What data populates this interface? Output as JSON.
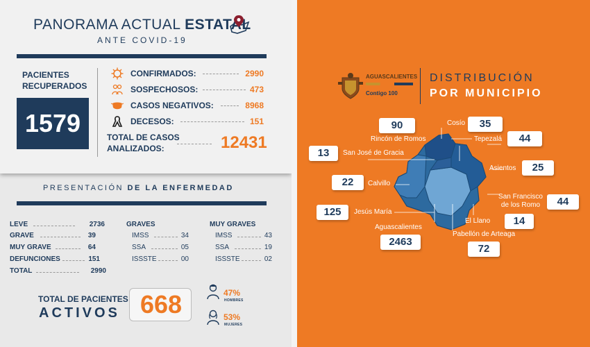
{
  "header": {
    "title_prefix": "PANORAMA ACTUAL",
    "title_bold": "ESTATAL",
    "subtitle": "ANTE COVID-19"
  },
  "recuperados": {
    "label": "PACIENTES RECUPERADOS",
    "value": "1579"
  },
  "stats": [
    {
      "label": "CONFIRMADOS:",
      "value": "2990",
      "icon": "virus-icon"
    },
    {
      "label": "SOSPECHOSOS:",
      "value": "473",
      "icon": "people-icon"
    },
    {
      "label": "CASOS NEGATIVOS:",
      "value": "8968",
      "icon": "mask-icon"
    },
    {
      "label": "DECESOS:",
      "value": "151",
      "icon": "ribbon-icon"
    }
  ],
  "total_casos": {
    "label": "TOTAL DE CASOS ANALIZADOS:",
    "value": "12431"
  },
  "presentacion": {
    "title_prefix": "PRESENTACIÓN",
    "title_bold": "DE LA ENFERMEDAD",
    "col1": [
      {
        "label": "LEVE",
        "value": "2736"
      },
      {
        "label": "GRAVE",
        "value": "39"
      },
      {
        "label": "MUY GRAVE",
        "value": "64"
      },
      {
        "label": "DEFUNCIONES",
        "value": "151"
      },
      {
        "label": "TOTAL",
        "value": "2990"
      }
    ],
    "col2_header": "GRAVES",
    "col2": [
      {
        "label": "IMSS",
        "value": "34"
      },
      {
        "label": "SSA",
        "value": "05"
      },
      {
        "label": "ISSSTE",
        "value": "00"
      }
    ],
    "col3_header": "MUY GRAVES",
    "col3": [
      {
        "label": "IMSS",
        "value": "43"
      },
      {
        "label": "SSA",
        "value": "19"
      },
      {
        "label": "ISSSTE",
        "value": "02"
      }
    ]
  },
  "activos": {
    "label_top": "TOTAL DE PACIENTES",
    "label_bottom": "ACTIVOS",
    "value": "668"
  },
  "gender": {
    "men_pct": "47%",
    "men_label": "HOMBRES",
    "women_pct": "53%",
    "women_label": "MUJERES"
  },
  "distribution": {
    "logo_text": "AGUASCALIENTES",
    "logo_slogan": "Contigo 100",
    "title_line1": "DISTRIBUCIÓN",
    "title_line2": "POR MUNICIPIO",
    "municipalities": [
      {
        "name": "Rincón de Romos",
        "value": "90"
      },
      {
        "name": "Cosío",
        "value": "35"
      },
      {
        "name": "Tepezalá",
        "value": "44"
      },
      {
        "name": "San José de Gracia",
        "value": "13"
      },
      {
        "name": "Asientos",
        "value": "25"
      },
      {
        "name": "Calvillo",
        "value": "22"
      },
      {
        "name": "San Francisco de los Romo",
        "value": "44"
      },
      {
        "name": "Jesús María",
        "value": "125"
      },
      {
        "name": "El Llano",
        "value": "14"
      },
      {
        "name": "Aguascalientes",
        "value": "2463"
      },
      {
        "name": "Pabellón de Arteaga",
        "value": "72"
      }
    ]
  },
  "colors": {
    "navy": "#1f3b5b",
    "orange": "#ee7a24",
    "panel": "#f1f1f1"
  }
}
